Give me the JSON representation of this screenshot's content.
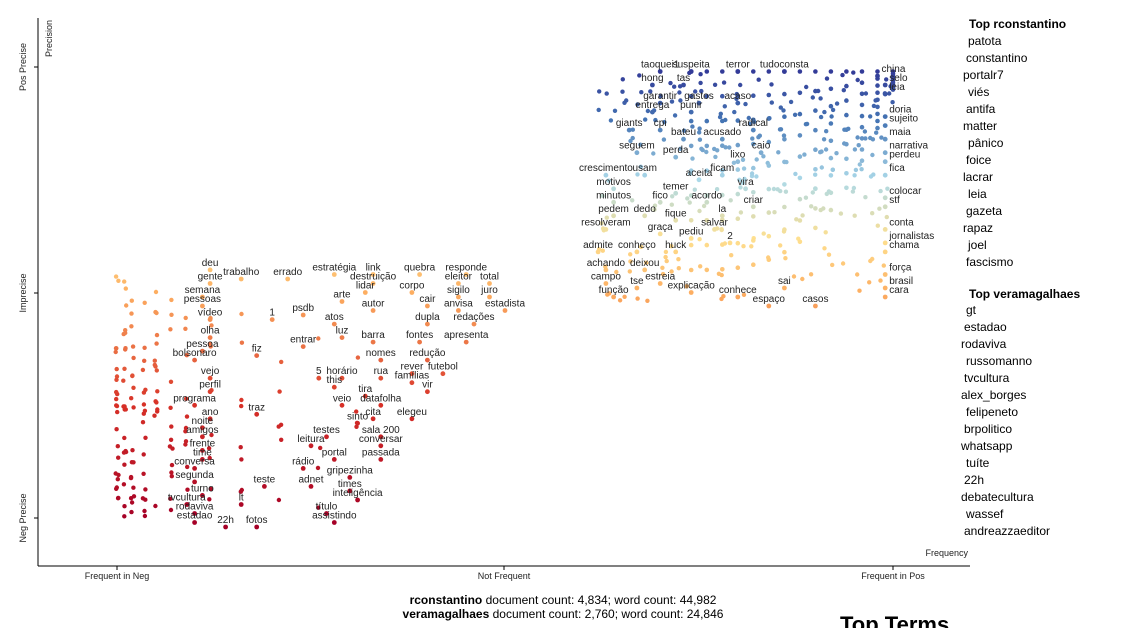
{
  "chart_data": {
    "type": "scatter",
    "x_axis": {
      "label": "Frequency",
      "ticks": [
        "Frequent in Neg",
        "Not Frequent",
        "Frequent in Pos"
      ],
      "range": [
        0,
        1
      ]
    },
    "y_axis": {
      "label": "Precision",
      "ticks": [
        "Neg Precise",
        "Imprecise",
        "Pos Precise"
      ],
      "range": [
        0,
        1
      ]
    },
    "positive_category": "rconstantino",
    "negative_category": "veramagalhaes",
    "labeled_terms_pos": [
      {
        "t": "taoquei1",
        "x": 0.7,
        "y": 0.99
      },
      {
        "t": "suspeita",
        "x": 0.74,
        "y": 0.99
      },
      {
        "t": "terror",
        "x": 0.8,
        "y": 0.99
      },
      {
        "t": "tudoconsta",
        "x": 0.86,
        "y": 0.99
      },
      {
        "t": "china",
        "x": 0.98,
        "y": 0.98
      },
      {
        "t": "hong",
        "x": 0.69,
        "y": 0.96
      },
      {
        "t": "tas",
        "x": 0.73,
        "y": 0.96
      },
      {
        "t": "selo",
        "x": 0.99,
        "y": 0.96
      },
      {
        "t": "leia",
        "x": 0.99,
        "y": 0.94
      },
      {
        "t": "garantir",
        "x": 0.7,
        "y": 0.92
      },
      {
        "t": "gastos",
        "x": 0.75,
        "y": 0.92
      },
      {
        "t": "acaso",
        "x": 0.8,
        "y": 0.92
      },
      {
        "t": "entrega",
        "x": 0.69,
        "y": 0.9
      },
      {
        "t": "punir",
        "x": 0.74,
        "y": 0.9
      },
      {
        "t": "doria",
        "x": 0.99,
        "y": 0.89
      },
      {
        "t": "giants",
        "x": 0.66,
        "y": 0.86
      },
      {
        "t": "cpi",
        "x": 0.7,
        "y": 0.86
      },
      {
        "t": "radical",
        "x": 0.82,
        "y": 0.86
      },
      {
        "t": "sujeito",
        "x": 0.99,
        "y": 0.87
      },
      {
        "t": "bateu",
        "x": 0.73,
        "y": 0.84
      },
      {
        "t": "acusado",
        "x": 0.78,
        "y": 0.84
      },
      {
        "t": "maia",
        "x": 0.99,
        "y": 0.84
      },
      {
        "t": "seguem",
        "x": 0.67,
        "y": 0.81
      },
      {
        "t": "perda",
        "x": 0.72,
        "y": 0.8
      },
      {
        "t": "caio",
        "x": 0.83,
        "y": 0.81
      },
      {
        "t": "narrativa",
        "x": 0.99,
        "y": 0.81
      },
      {
        "t": "lixo",
        "x": 0.8,
        "y": 0.79
      },
      {
        "t": "perdeu",
        "x": 0.99,
        "y": 0.79
      },
      {
        "t": "crescimento",
        "x": 0.63,
        "y": 0.76
      },
      {
        "t": "usam",
        "x": 0.68,
        "y": 0.76
      },
      {
        "t": "ficam",
        "x": 0.78,
        "y": 0.76
      },
      {
        "t": "aceita",
        "x": 0.75,
        "y": 0.75
      },
      {
        "t": "fica",
        "x": 0.99,
        "y": 0.76
      },
      {
        "t": "motivos",
        "x": 0.64,
        "y": 0.73
      },
      {
        "t": "temer",
        "x": 0.72,
        "y": 0.72
      },
      {
        "t": "vira",
        "x": 0.81,
        "y": 0.73
      },
      {
        "t": "colocar",
        "x": 0.99,
        "y": 0.71
      },
      {
        "t": "minutos",
        "x": 0.64,
        "y": 0.7
      },
      {
        "t": "fico",
        "x": 0.7,
        "y": 0.7
      },
      {
        "t": "acordo",
        "x": 0.76,
        "y": 0.7
      },
      {
        "t": "criar",
        "x": 0.82,
        "y": 0.69
      },
      {
        "t": "stf",
        "x": 0.99,
        "y": 0.69
      },
      {
        "t": "pedem",
        "x": 0.64,
        "y": 0.67
      },
      {
        "t": "dedo",
        "x": 0.68,
        "y": 0.67
      },
      {
        "t": "la",
        "x": 0.78,
        "y": 0.67
      },
      {
        "t": "fique",
        "x": 0.72,
        "y": 0.66
      },
      {
        "t": "resolveram",
        "x": 0.63,
        "y": 0.64
      },
      {
        "t": "graça",
        "x": 0.7,
        "y": 0.63
      },
      {
        "t": "salvar",
        "x": 0.77,
        "y": 0.64
      },
      {
        "t": "pediu",
        "x": 0.74,
        "y": 0.62
      },
      {
        "t": "admite",
        "x": 0.62,
        "y": 0.59
      },
      {
        "t": "conheço",
        "x": 0.67,
        "y": 0.59
      },
      {
        "t": "huck",
        "x": 0.72,
        "y": 0.59
      },
      {
        "t": "2",
        "x": 0.79,
        "y": 0.61
      },
      {
        "t": "jornalistas",
        "x": 0.99,
        "y": 0.61
      },
      {
        "t": "chama",
        "x": 0.99,
        "y": 0.59
      },
      {
        "t": "conta",
        "x": 0.99,
        "y": 0.64
      },
      {
        "t": "achando",
        "x": 0.63,
        "y": 0.55
      },
      {
        "t": "deixou",
        "x": 0.68,
        "y": 0.55
      },
      {
        "t": "força",
        "x": 0.99,
        "y": 0.54
      },
      {
        "t": "campo",
        "x": 0.63,
        "y": 0.52
      },
      {
        "t": "tse",
        "x": 0.67,
        "y": 0.51
      },
      {
        "t": "estreia",
        "x": 0.7,
        "y": 0.52
      },
      {
        "t": "explicação",
        "x": 0.74,
        "y": 0.5
      },
      {
        "t": "conhece",
        "x": 0.8,
        "y": 0.49
      },
      {
        "t": "sai",
        "x": 0.86,
        "y": 0.51
      },
      {
        "t": "brasil",
        "x": 0.99,
        "y": 0.51
      },
      {
        "t": "função",
        "x": 0.64,
        "y": 0.49
      },
      {
        "t": "espaço",
        "x": 0.84,
        "y": 0.47
      },
      {
        "t": "casos",
        "x": 0.9,
        "y": 0.47
      },
      {
        "t": "cara",
        "x": 0.99,
        "y": 0.49
      }
    ],
    "labeled_terms_neg": [
      {
        "t": "deu",
        "x": 0.12,
        "y": 0.55
      },
      {
        "t": "trabalho",
        "x": 0.16,
        "y": 0.53
      },
      {
        "t": "errado",
        "x": 0.22,
        "y": 0.53
      },
      {
        "t": "estratégia",
        "x": 0.28,
        "y": 0.54
      },
      {
        "t": "link",
        "x": 0.33,
        "y": 0.54
      },
      {
        "t": "quebra",
        "x": 0.39,
        "y": 0.54
      },
      {
        "t": "responde",
        "x": 0.45,
        "y": 0.54
      },
      {
        "t": "gente",
        "x": 0.12,
        "y": 0.52
      },
      {
        "t": "destruição",
        "x": 0.33,
        "y": 0.52
      },
      {
        "t": "eleitor",
        "x": 0.44,
        "y": 0.52
      },
      {
        "t": "total",
        "x": 0.48,
        "y": 0.52
      },
      {
        "t": "semana",
        "x": 0.11,
        "y": 0.49
      },
      {
        "t": "lidar",
        "x": 0.32,
        "y": 0.5
      },
      {
        "t": "corpo",
        "x": 0.38,
        "y": 0.5
      },
      {
        "t": "sigilo",
        "x": 0.44,
        "y": 0.49
      },
      {
        "t": "juro",
        "x": 0.48,
        "y": 0.49
      },
      {
        "t": "pessoas",
        "x": 0.11,
        "y": 0.47
      },
      {
        "t": "arte",
        "x": 0.29,
        "y": 0.48
      },
      {
        "t": "cair",
        "x": 0.4,
        "y": 0.47
      },
      {
        "t": "anvisa",
        "x": 0.44,
        "y": 0.46
      },
      {
        "t": "estadista",
        "x": 0.5,
        "y": 0.46
      },
      {
        "t": "vídeo",
        "x": 0.12,
        "y": 0.44
      },
      {
        "t": "autor",
        "x": 0.33,
        "y": 0.46
      },
      {
        "t": "1",
        "x": 0.2,
        "y": 0.44
      },
      {
        "t": "psdb",
        "x": 0.24,
        "y": 0.45
      },
      {
        "t": "atos",
        "x": 0.28,
        "y": 0.43
      },
      {
        "t": "dupla",
        "x": 0.4,
        "y": 0.43
      },
      {
        "t": "redações",
        "x": 0.46,
        "y": 0.43
      },
      {
        "t": "olha",
        "x": 0.12,
        "y": 0.4
      },
      {
        "t": "luz",
        "x": 0.29,
        "y": 0.4
      },
      {
        "t": "barra",
        "x": 0.33,
        "y": 0.39
      },
      {
        "t": "fontes",
        "x": 0.39,
        "y": 0.39
      },
      {
        "t": "apresenta",
        "x": 0.45,
        "y": 0.39
      },
      {
        "t": "pessoa",
        "x": 0.11,
        "y": 0.37
      },
      {
        "t": "fiz",
        "x": 0.18,
        "y": 0.36
      },
      {
        "t": "entrar",
        "x": 0.24,
        "y": 0.38
      },
      {
        "t": "bolsonaro",
        "x": 0.1,
        "y": 0.35
      },
      {
        "t": "nomes",
        "x": 0.34,
        "y": 0.35
      },
      {
        "t": "redução",
        "x": 0.4,
        "y": 0.35
      },
      {
        "t": "vejo",
        "x": 0.12,
        "y": 0.31
      },
      {
        "t": "5",
        "x": 0.26,
        "y": 0.31
      },
      {
        "t": "horário",
        "x": 0.29,
        "y": 0.31
      },
      {
        "t": "rua",
        "x": 0.34,
        "y": 0.31
      },
      {
        "t": "rever",
        "x": 0.38,
        "y": 0.32
      },
      {
        "t": "futebol",
        "x": 0.42,
        "y": 0.32
      },
      {
        "t": "this",
        "x": 0.28,
        "y": 0.29
      },
      {
        "t": "famílias",
        "x": 0.38,
        "y": 0.3
      },
      {
        "t": "vir",
        "x": 0.4,
        "y": 0.28
      },
      {
        "t": "perfil",
        "x": 0.12,
        "y": 0.28
      },
      {
        "t": "tira",
        "x": 0.32,
        "y": 0.27
      },
      {
        "t": "programa",
        "x": 0.1,
        "y": 0.25
      },
      {
        "t": "veio",
        "x": 0.29,
        "y": 0.25
      },
      {
        "t": "datafolha",
        "x": 0.34,
        "y": 0.25
      },
      {
        "t": "ano",
        "x": 0.12,
        "y": 0.22
      },
      {
        "t": "traz",
        "x": 0.18,
        "y": 0.23
      },
      {
        "t": "cita",
        "x": 0.33,
        "y": 0.22
      },
      {
        "t": "elegeu",
        "x": 0.38,
        "y": 0.22
      },
      {
        "t": "noite",
        "x": 0.11,
        "y": 0.2
      },
      {
        "t": "sinto",
        "x": 0.31,
        "y": 0.21
      },
      {
        "t": "amigos",
        "x": 0.11,
        "y": 0.18
      },
      {
        "t": "testes",
        "x": 0.27,
        "y": 0.18
      },
      {
        "t": "sala 200",
        "x": 0.34,
        "y": 0.18
      },
      {
        "t": "leitura",
        "x": 0.25,
        "y": 0.16
      },
      {
        "t": "conversar",
        "x": 0.34,
        "y": 0.16
      },
      {
        "t": "frente",
        "x": 0.11,
        "y": 0.15
      },
      {
        "t": "time",
        "x": 0.11,
        "y": 0.13
      },
      {
        "t": "portal",
        "x": 0.28,
        "y": 0.13
      },
      {
        "t": "passada",
        "x": 0.34,
        "y": 0.13
      },
      {
        "t": "conversa",
        "x": 0.1,
        "y": 0.11
      },
      {
        "t": "rádio",
        "x": 0.24,
        "y": 0.11
      },
      {
        "t": "gripezinha",
        "x": 0.3,
        "y": 0.09
      },
      {
        "t": "segunda",
        "x": 0.1,
        "y": 0.08
      },
      {
        "t": "teste",
        "x": 0.19,
        "y": 0.07
      },
      {
        "t": "adnet",
        "x": 0.25,
        "y": 0.07
      },
      {
        "t": "times",
        "x": 0.3,
        "y": 0.06
      },
      {
        "t": "turno",
        "x": 0.11,
        "y": 0.05
      },
      {
        "t": "inteligência",
        "x": 0.31,
        "y": 0.04
      },
      {
        "t": "tvcultura",
        "x": 0.09,
        "y": 0.03
      },
      {
        "t": "lt",
        "x": 0.16,
        "y": 0.03
      },
      {
        "t": "rodaviva",
        "x": 0.1,
        "y": 0.01
      },
      {
        "t": "título",
        "x": 0.27,
        "y": 0.01
      },
      {
        "t": "estadao",
        "x": 0.1,
        "y": -0.01
      },
      {
        "t": "22h",
        "x": 0.14,
        "y": -0.02
      },
      {
        "t": "fotos",
        "x": 0.18,
        "y": -0.02
      },
      {
        "t": "assistindo",
        "x": 0.28,
        "y": -0.01
      }
    ],
    "grid": false,
    "legend": "right"
  },
  "sidebar": {
    "top_pos_title": "Top rconstantino",
    "top_pos": [
      "patota",
      "constantino",
      "portalr7",
      "viés",
      "antifa",
      "matter",
      "pânico",
      "foice",
      "lacrar",
      "leia",
      "gazeta",
      "rapaz",
      "joel",
      "fascismo"
    ],
    "top_neg_title": "Top veramagalhaes",
    "top_neg": [
      "gt",
      "estadao",
      "rodaviva",
      "russomanno",
      "tvcultura",
      "alex_borges",
      "felipeneto",
      "brpolitico",
      "whatsapp",
      "tuíte",
      "22h",
      "debatecultura",
      "wassef",
      "andreazzaeditor"
    ]
  },
  "footer": {
    "pos_name": "rconstantino",
    "pos_stats": "document count: 4,834; word count: 44,982",
    "neg_name": "veramagalhaes",
    "neg_stats": "document count: 2,760; word count: 24,846"
  },
  "bottom_heading": "Top Terms"
}
